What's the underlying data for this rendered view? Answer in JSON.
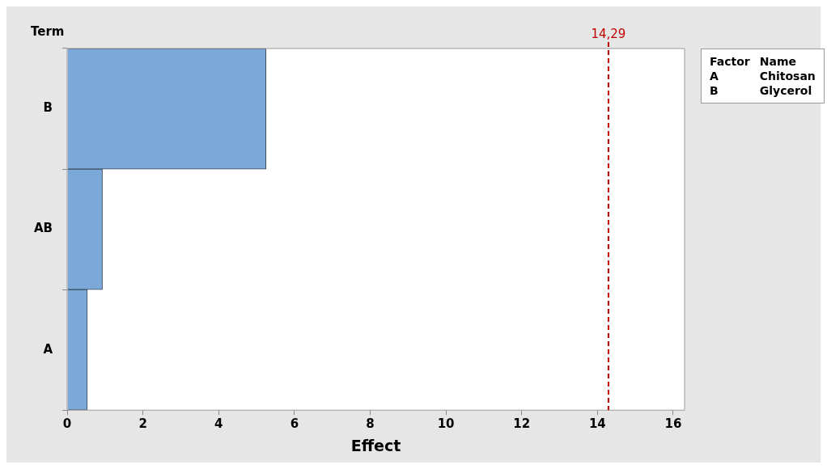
{
  "chart_data": {
    "type": "bar",
    "orientation": "horizontal",
    "categories": [
      "B",
      "AB",
      "A"
    ],
    "values": [
      5.25,
      0.93,
      0.53
    ],
    "color": "#7ba7d9",
    "xlabel": "Effect",
    "ylabel": "Term",
    "xlim": [
      0,
      16.3
    ],
    "xticks": [
      0,
      2,
      4,
      6,
      8,
      10,
      12,
      14,
      16
    ],
    "grid": false,
    "legend": false,
    "ref_lines": [
      {
        "axis": "x",
        "value": 14.29,
        "label": "14,29",
        "color": "#c00000",
        "line_style": "dashed"
      }
    ],
    "annotations": [
      "Factor",
      "Name",
      "A",
      "Chitosan",
      "B",
      "Glycerol"
    ]
  }
}
